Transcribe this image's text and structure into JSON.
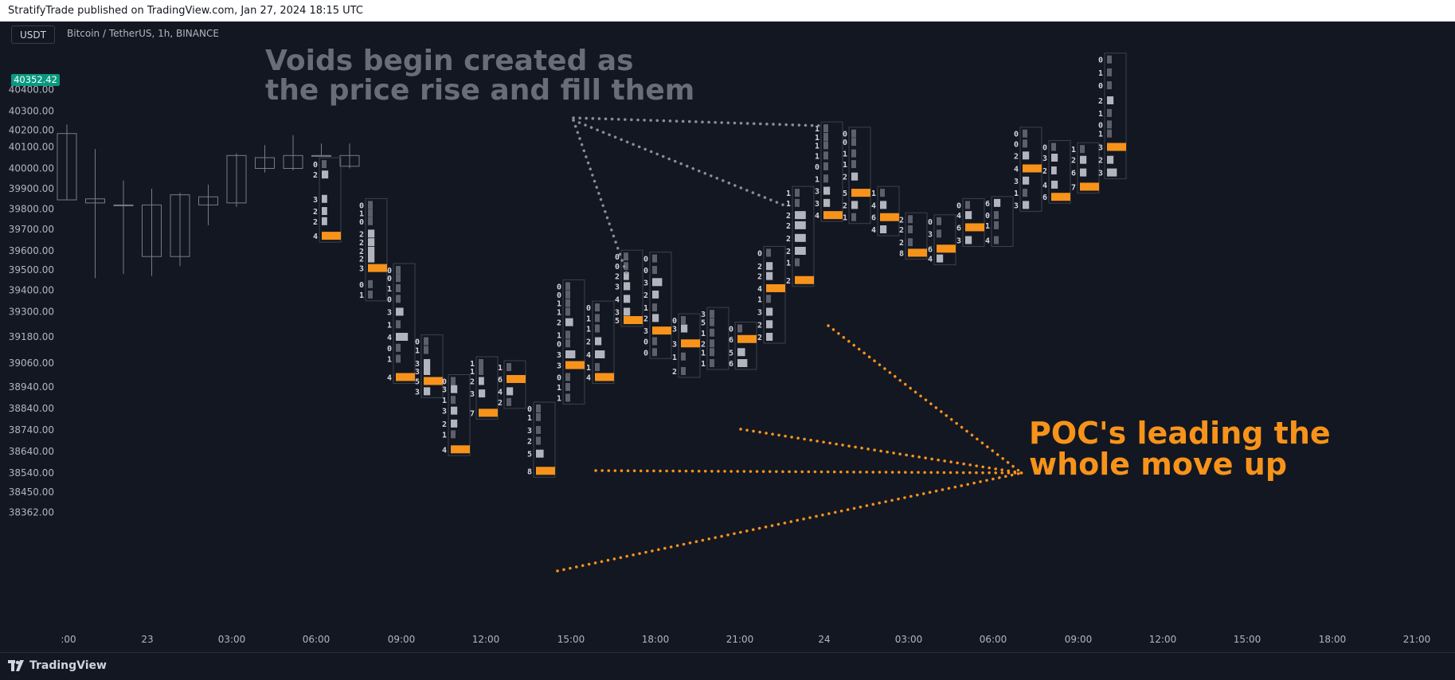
{
  "header": {
    "published": "StratifyTrade published on TradingView.com, Jan 27, 2024 18:15 UTC"
  },
  "chart": {
    "currency_button": "USDT",
    "symbol_title": "Bitcoin / TetherUS, 1h, BINANCE",
    "last_price": "40352.42",
    "last_price_color": "#089981",
    "background": "#131722",
    "poc_color": "#f7931a",
    "volume_bar_color": "#b2b5be",
    "candle_color": "#787b86"
  },
  "annotations": {
    "voids_text": "Voids begin created as\nthe price rise and fill them",
    "poc_text": "POC's leading the\nwhole move up"
  },
  "footer": {
    "brand": "TradingView",
    "brand_icon": "tradingview-logo-icon"
  },
  "chart_data": {
    "type": "candlestick-footprint",
    "title": "Bitcoin / TetherUS, 1h, BINANCE",
    "y_ticks": [
      "40400.00",
      "40300.00",
      "40200.00",
      "40100.00",
      "40000.00",
      "39900.00",
      "39800.00",
      "39700.00",
      "39600.00",
      "39500.00",
      "39400.00",
      "39300.00",
      "39180.00",
      "39060.00",
      "38940.00",
      "38840.00",
      "38740.00",
      "38640.00",
      "38540.00",
      "38450.00",
      "38362.00"
    ],
    "x_ticks": [
      ":00",
      "23",
      "03:00",
      "06:00",
      "09:00",
      "12:00",
      "15:00",
      "18:00",
      "21:00",
      "24",
      "03:00",
      "06:00",
      "09:00",
      "12:00",
      "15:00",
      "18:00",
      "21:00"
    ],
    "candles": [
      {
        "o": 39845,
        "h": 40230,
        "l": 39845,
        "c": 40180
      },
      {
        "o": 39830,
        "h": 40090,
        "l": 39460,
        "c": 39850
      },
      {
        "o": 39820,
        "h": 39940,
        "l": 39480,
        "c": 39820
      },
      {
        "o": 39570,
        "h": 39900,
        "l": 39470,
        "c": 39820
      },
      {
        "o": 39570,
        "h": 39880,
        "l": 39520,
        "c": 39870
      },
      {
        "o": 39820,
        "h": 39920,
        "l": 39720,
        "c": 39860
      },
      {
        "o": 39830,
        "h": 40070,
        "l": 39810,
        "c": 40060
      },
      {
        "o": 40000,
        "h": 40110,
        "l": 39980,
        "c": 40050
      },
      {
        "o": 40000,
        "h": 40170,
        "l": 39990,
        "c": 40060
      },
      {
        "o": 40060,
        "h": 40120,
        "l": 40060,
        "c": 40060
      },
      {
        "o": 40060,
        "h": 40120,
        "l": 40000,
        "c": 40010
      }
    ],
    "footprints": [
      {
        "rows": [
          [
            "0",
            40020,
            1
          ],
          [
            "2",
            39970,
            3
          ],
          [
            "3",
            39850,
            2
          ],
          [
            "2",
            39790,
            2
          ],
          [
            "2",
            39740,
            2
          ],
          [
            "4",
            39670,
            9
          ]
        ],
        "poc": 5
      },
      {
        "rows": [
          [
            "0",
            39820,
            1
          ],
          [
            "1",
            39780,
            1
          ],
          [
            "0",
            39740,
            1
          ],
          [
            "2",
            39680,
            3
          ],
          [
            "2",
            39640,
            3
          ],
          [
            "2",
            39600,
            3
          ],
          [
            "2",
            39560,
            3
          ],
          [
            "3",
            39510,
            7
          ],
          [
            "0",
            39430,
            1
          ],
          [
            "1",
            39380,
            1
          ]
        ],
        "poc": 7
      },
      {
        "rows": [
          [
            "0",
            39500,
            1
          ],
          [
            "0",
            39460,
            1
          ],
          [
            "1",
            39410,
            1
          ],
          [
            "0",
            39360,
            1
          ],
          [
            "3",
            39300,
            4
          ],
          [
            "1",
            39240,
            1
          ],
          [
            "4",
            39180,
            8
          ],
          [
            "0",
            39130,
            1
          ],
          [
            "1",
            39080,
            1
          ],
          [
            "4",
            38990,
            8
          ]
        ],
        "poc": 9
      },
      {
        "rows": [
          [
            "0",
            39160,
            1
          ],
          [
            "1",
            39120,
            1
          ],
          [
            "3",
            39060,
            3
          ],
          [
            "3",
            39020,
            3
          ],
          [
            "5",
            38970,
            7
          ],
          [
            "3",
            38920,
            3
          ]
        ],
        "poc": 4
      },
      {
        "rows": [
          [
            "0",
            38970,
            1
          ],
          [
            "3",
            38930,
            3
          ],
          [
            "1",
            38880,
            1
          ],
          [
            "3",
            38830,
            3
          ],
          [
            "2",
            38770,
            3
          ],
          [
            "1",
            38720,
            1
          ],
          [
            "4",
            38650,
            7
          ]
        ],
        "poc": 6
      },
      {
        "rows": [
          [
            "1",
            39060,
            1
          ],
          [
            "1",
            39020,
            1
          ],
          [
            "2",
            38970,
            2
          ],
          [
            "3",
            38910,
            3
          ],
          [
            "7",
            38820,
            8
          ]
        ],
        "poc": 4
      },
      {
        "rows": [
          [
            "1",
            39040,
            1
          ],
          [
            "6",
            38980,
            8
          ],
          [
            "4",
            38920,
            3
          ],
          [
            "2",
            38870,
            1
          ]
        ],
        "poc": 1
      },
      {
        "rows": [
          [
            "0",
            38840,
            1
          ],
          [
            "1",
            38800,
            1
          ],
          [
            "3",
            38740,
            1
          ],
          [
            "2",
            38690,
            1
          ],
          [
            "5",
            38630,
            4
          ],
          [
            "8",
            38550,
            9
          ]
        ],
        "poc": 5
      },
      {
        "rows": [
          [
            "0",
            39420,
            1
          ],
          [
            "0",
            39380,
            1
          ],
          [
            "1",
            39340,
            1
          ],
          [
            "1",
            39300,
            1
          ],
          [
            "2",
            39250,
            4
          ],
          [
            "1",
            39190,
            1
          ],
          [
            "0",
            39150,
            1
          ],
          [
            "3",
            39100,
            6
          ],
          [
            "3",
            39050,
            6
          ],
          [
            "0",
            38990,
            1
          ],
          [
            "1",
            38940,
            1
          ],
          [
            "1",
            38890,
            1
          ]
        ],
        "poc": 8
      },
      {
        "rows": [
          [
            "0",
            39320,
            1
          ],
          [
            "1",
            39270,
            1
          ],
          [
            "1",
            39220,
            1
          ],
          [
            "2",
            39160,
            3
          ],
          [
            "4",
            39100,
            6
          ],
          [
            "1",
            39040,
            1
          ],
          [
            "4",
            38990,
            6
          ]
        ],
        "poc": 6
      },
      {
        "rows": [
          [
            "0",
            39570,
            1
          ],
          [
            "0",
            39520,
            1
          ],
          [
            "2",
            39470,
            2
          ],
          [
            "3",
            39420,
            3
          ],
          [
            "4",
            39360,
            3
          ],
          [
            "3",
            39300,
            3
          ],
          [
            "5",
            39260,
            6
          ]
        ],
        "poc": 6
      },
      {
        "rows": [
          [
            "0",
            39560,
            1
          ],
          [
            "0",
            39500,
            1
          ],
          [
            "3",
            39440,
            6
          ],
          [
            "2",
            39380,
            3
          ],
          [
            "1",
            39320,
            1
          ],
          [
            "2",
            39270,
            3
          ],
          [
            "3",
            39210,
            6
          ],
          [
            "0",
            39160,
            1
          ],
          [
            "0",
            39110,
            1
          ]
        ],
        "poc": 6
      },
      {
        "rows": [
          [
            "0",
            39260,
            1
          ],
          [
            "3",
            39220,
            3
          ],
          [
            "3",
            39150,
            6
          ],
          [
            "1",
            39090,
            1
          ],
          [
            "2",
            39020,
            1
          ]
        ],
        "poc": 2
      },
      {
        "rows": [
          [
            "3",
            39290,
            1
          ],
          [
            "5",
            39250,
            1
          ],
          [
            "1",
            39200,
            1
          ],
          [
            "2",
            39150,
            1
          ],
          [
            "1",
            39110,
            1
          ],
          [
            "1",
            39060,
            1
          ]
        ],
        "poc": -1
      },
      {
        "rows": [
          [
            "0",
            39220,
            1
          ],
          [
            "6",
            39170,
            6
          ],
          [
            "5",
            39110,
            4
          ],
          [
            "6",
            39060,
            6
          ]
        ],
        "poc": 1
      },
      {
        "rows": [
          [
            "0",
            39590,
            1
          ],
          [
            "2",
            39520,
            3
          ],
          [
            "2",
            39470,
            3
          ],
          [
            "4",
            39410,
            6
          ],
          [
            "1",
            39360,
            1
          ],
          [
            "3",
            39300,
            3
          ],
          [
            "2",
            39240,
            3
          ],
          [
            "2",
            39180,
            3
          ]
        ],
        "poc": 3
      },
      {
        "rows": [
          [
            "1",
            39880,
            1
          ],
          [
            "1",
            39830,
            1
          ],
          [
            "2",
            39770,
            7
          ],
          [
            "2",
            39720,
            7
          ],
          [
            "2",
            39660,
            7
          ],
          [
            "2",
            39600,
            7
          ],
          [
            "1",
            39540,
            1
          ],
          [
            "2",
            39450,
            7
          ]
        ],
        "poc": 7
      },
      {
        "rows": [
          [
            "1",
            40210,
            1
          ],
          [
            "1",
            40160,
            1
          ],
          [
            "1",
            40110,
            1
          ],
          [
            "1",
            40060,
            1
          ],
          [
            "0",
            40010,
            1
          ],
          [
            "1",
            39950,
            1
          ],
          [
            "3",
            39890,
            3
          ],
          [
            "3",
            39830,
            3
          ],
          [
            "4",
            39770,
            7
          ]
        ],
        "poc": 8
      },
      {
        "rows": [
          [
            "0",
            40180,
            1
          ],
          [
            "0",
            40130,
            1
          ],
          [
            "1",
            40070,
            1
          ],
          [
            "1",
            40020,
            1
          ],
          [
            "2",
            39960,
            3
          ],
          [
            "5",
            39880,
            7
          ],
          [
            "2",
            39820,
            3
          ],
          [
            "1",
            39760,
            1
          ]
        ],
        "poc": 5
      },
      {
        "rows": [
          [
            "1",
            39880,
            1
          ],
          [
            "4",
            39820,
            3
          ],
          [
            "6",
            39760,
            6
          ],
          [
            "4",
            39700,
            3
          ]
        ],
        "poc": 2
      },
      {
        "rows": [
          [
            "2",
            39750,
            1
          ],
          [
            "2",
            39700,
            1
          ],
          [
            "2",
            39640,
            1
          ],
          [
            "8",
            39590,
            7
          ]
        ],
        "poc": 3
      },
      {
        "rows": [
          [
            "0",
            39740,
            1
          ],
          [
            "3",
            39680,
            1
          ],
          [
            "6",
            39610,
            6
          ],
          [
            "4",
            39560,
            3
          ]
        ],
        "poc": 2
      },
      {
        "rows": [
          [
            "0",
            39820,
            1
          ],
          [
            "4",
            39770,
            3
          ],
          [
            "6",
            39710,
            6
          ],
          [
            "3",
            39650,
            3
          ]
        ],
        "poc": 2
      },
      {
        "rows": [
          [
            "6",
            39830,
            3
          ],
          [
            "0",
            39770,
            1
          ],
          [
            "1",
            39720,
            1
          ],
          [
            "4",
            39650,
            1
          ]
        ],
        "poc": -1
      },
      {
        "rows": [
          [
            "0",
            40180,
            1
          ],
          [
            "0",
            40120,
            1
          ],
          [
            "2",
            40060,
            3
          ],
          [
            "4",
            40000,
            6
          ],
          [
            "3",
            39940,
            3
          ],
          [
            "1",
            39880,
            1
          ],
          [
            "3",
            39820,
            3
          ]
        ],
        "poc": 3
      },
      {
        "rows": [
          [
            "0",
            40100,
            1
          ],
          [
            "3",
            40050,
            3
          ],
          [
            "2",
            39990,
            2
          ],
          [
            "4",
            39920,
            3
          ],
          [
            "6",
            39860,
            6
          ]
        ],
        "poc": 4
      },
      {
        "rows": [
          [
            "1",
            40090,
            1
          ],
          [
            "2",
            40040,
            3
          ],
          [
            "6",
            39980,
            3
          ],
          [
            "7",
            39910,
            6
          ]
        ],
        "poc": 3
      },
      {
        "rows": [
          [
            "0",
            40540,
            1
          ],
          [
            "1",
            40480,
            1
          ],
          [
            "0",
            40420,
            1
          ],
          [
            "2",
            40350,
            3
          ],
          [
            "1",
            40290,
            1
          ],
          [
            "0",
            40230,
            1
          ],
          [
            "1",
            40180,
            1
          ],
          [
            "3",
            40100,
            6
          ],
          [
            "2",
            40040,
            3
          ],
          [
            "3",
            39980,
            6
          ]
        ],
        "poc": 7
      }
    ]
  }
}
